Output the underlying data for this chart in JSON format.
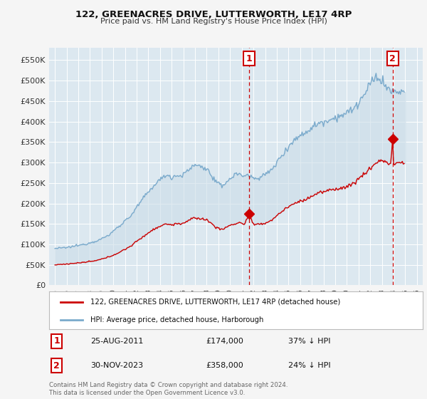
{
  "title": "122, GREENACRES DRIVE, LUTTERWORTH, LE17 4RP",
  "subtitle": "Price paid vs. HM Land Registry's House Price Index (HPI)",
  "legend_line1": "122, GREENACRES DRIVE, LUTTERWORTH, LE17 4RP (detached house)",
  "legend_line2": "HPI: Average price, detached house, Harborough",
  "annotation1_date": "25-AUG-2011",
  "annotation1_price": "£174,000",
  "annotation1_hpi": "37% ↓ HPI",
  "annotation1_year": 2011.64,
  "annotation1_value_red": 174000,
  "annotation2_date": "30-NOV-2023",
  "annotation2_price": "£358,000",
  "annotation2_hpi": "24% ↓ HPI",
  "annotation2_year": 2023.92,
  "annotation2_value_red": 358000,
  "ylim": [
    0,
    580000
  ],
  "yticks": [
    0,
    50000,
    100000,
    150000,
    200000,
    250000,
    300000,
    350000,
    400000,
    450000,
    500000,
    550000
  ],
  "background_color": "#f5f5f5",
  "plot_bg_color": "#dce8f0",
  "grid_color": "#ffffff",
  "red_color": "#cc0000",
  "blue_color": "#7aaacc",
  "fill_color": "#ccdde8",
  "xmin": 1994.5,
  "xmax": 2026.5,
  "footnote": "Contains HM Land Registry data © Crown copyright and database right 2024.\nThis data is licensed under the Open Government Licence v3.0."
}
